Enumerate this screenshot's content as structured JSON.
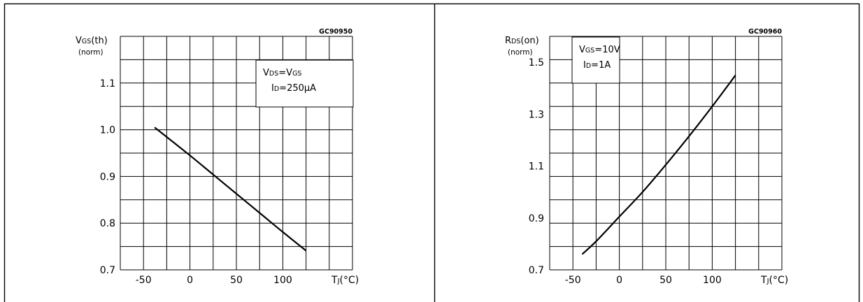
{
  "chart_data": [
    {
      "type": "line",
      "code": "GC90950",
      "ylabel": {
        "main": "V",
        "sub": "GS",
        "suffix": "(th)",
        "unit": "(norm)"
      },
      "xlabel": {
        "main": "T",
        "sub": "J",
        "suffix": "(°C)"
      },
      "xlim": [
        -75,
        175
      ],
      "ylim": [
        0.7,
        1.2
      ],
      "xticks": [
        "-50",
        "0",
        "50",
        "100"
      ],
      "yticks": [
        "0.7",
        "0.8",
        "0.9",
        "1.0",
        "1.1"
      ],
      "grid": true,
      "annotation": [
        {
          "parts": [
            {
              "t": "V",
              "sub": false
            },
            {
              "t": "DS",
              "sub": true
            },
            {
              "t": "=V",
              "sub": false
            },
            {
              "t": "GS",
              "sub": true
            }
          ]
        },
        {
          "parts": [
            {
              "t": "I",
              "sub": false
            },
            {
              "t": "D",
              "sub": true
            },
            {
              "t": "=250μA",
              "sub": false
            }
          ]
        }
      ],
      "series": [
        {
          "x": [
            -38,
            0,
            25,
            50,
            75,
            100,
            125
          ],
          "y": [
            1.005,
            0.945,
            0.904,
            0.863,
            0.822,
            0.781,
            0.741
          ]
        }
      ]
    },
    {
      "type": "line",
      "code": "GC90960",
      "ylabel": {
        "main": "R",
        "sub": "DS",
        "suffix": "(on)",
        "unit": "(norm)"
      },
      "xlabel": {
        "main": "T",
        "sub": "J",
        "suffix": "(°C)"
      },
      "xlim": [
        -75,
        175
      ],
      "ylim": [
        0.7,
        1.6
      ],
      "xticks": [
        "-50",
        "0",
        "50",
        "100"
      ],
      "yticks": [
        "0.7",
        "0.9",
        "1.1",
        "1.3",
        "1.5"
      ],
      "grid": true,
      "annotation": [
        {
          "parts": [
            {
              "t": "V",
              "sub": false
            },
            {
              "t": "GS",
              "sub": true
            },
            {
              "t": "=10V",
              "sub": false
            }
          ]
        },
        {
          "parts": [
            {
              "t": "I",
              "sub": false
            },
            {
              "t": "D",
              "sub": true
            },
            {
              "t": "=1A",
              "sub": false
            }
          ]
        }
      ],
      "series": [
        {
          "x": [
            -40,
            -25,
            0,
            25,
            50,
            75,
            100,
            125
          ],
          "y": [
            0.76,
            0.81,
            0.905,
            1.0,
            1.105,
            1.215,
            1.33,
            1.45
          ]
        }
      ]
    }
  ]
}
